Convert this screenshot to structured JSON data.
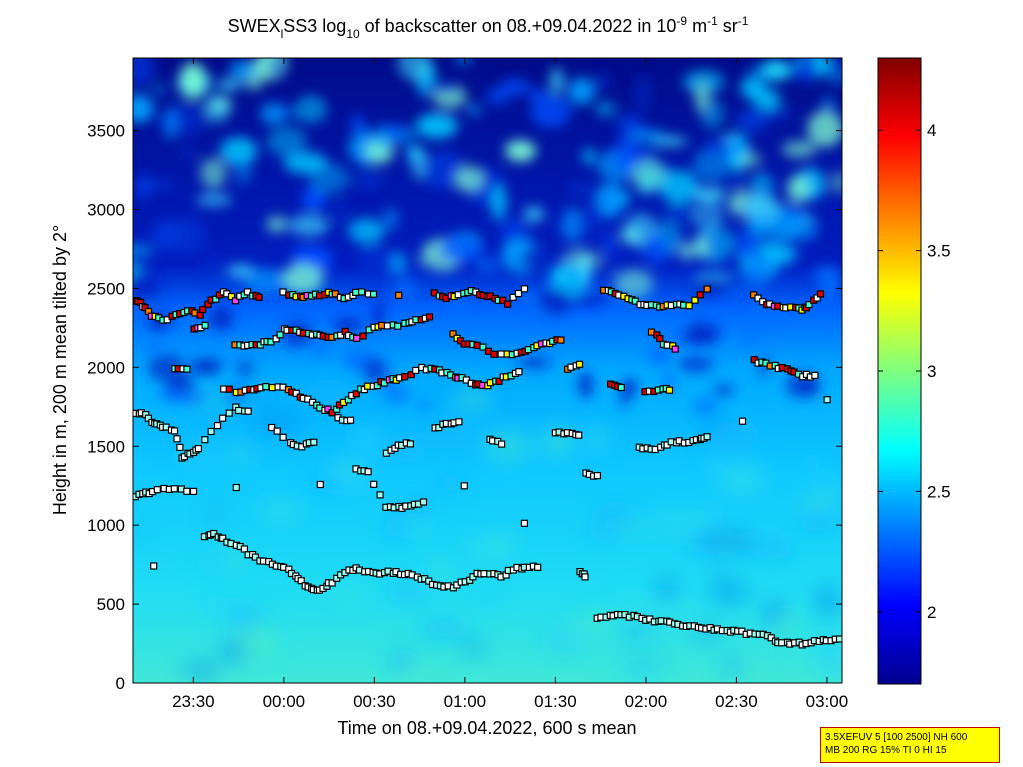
{
  "chart_data": {
    "type": "heatmap",
    "title": {
      "prefix": "SWEX",
      "sub_i": "l",
      "mid": "SS3 log",
      "sub_10": "10",
      "rest": " of backscatter on 08.+09.04.2022 in 10",
      "sup1": "-9",
      "unit_m": " m",
      "sup2": "-1",
      "unit_sr": " sr",
      "sup3": "-1"
    },
    "xlabel": "Time on 08.+09.04.2022, 600 s mean",
    "ylabel": "Height in m, 200 m mean tilted by 2°",
    "x_ticks": [
      "23:30",
      "00:00",
      "00:30",
      "01:00",
      "01:30",
      "02:00",
      "02:30",
      "03:00"
    ],
    "x_tick_minutes": [
      1410,
      1440,
      1470,
      1500,
      1530,
      1560,
      1590,
      1620
    ],
    "xlim_minutes": [
      1390,
      1625
    ],
    "y_ticks": [
      "0",
      "500",
      "1000",
      "1500",
      "2000",
      "2500",
      "3000",
      "3500"
    ],
    "y_tick_values": [
      0,
      500,
      1000,
      1500,
      2000,
      2500,
      3000,
      3500
    ],
    "ylim": [
      0,
      3960
    ],
    "colorbar": {
      "ticks": [
        "2",
        "2.5",
        "3",
        "3.5",
        "4"
      ],
      "tick_values": [
        2,
        2.5,
        3,
        3.5,
        4
      ],
      "range": [
        1.7,
        4.3
      ],
      "colormap": "jet"
    },
    "layers": [
      {
        "name": "upper",
        "points": [
          [
            1391,
            2430
          ],
          [
            1393,
            2390
          ],
          [
            1396,
            2330
          ],
          [
            1400,
            2300
          ],
          [
            1404,
            2330
          ],
          [
            1408,
            2360
          ],
          [
            1412,
            2330
          ],
          [
            1416,
            2420
          ],
          [
            1420,
            2470
          ],
          [
            1424,
            2430
          ],
          [
            1428,
            2470
          ],
          [
            1432,
            2440
          ],
          [
            1440,
            2480
          ],
          [
            1444,
            2440
          ],
          [
            1448,
            2450
          ],
          [
            1452,
            2460
          ],
          [
            1456,
            2470
          ],
          [
            1460,
            2430
          ],
          [
            1464,
            2480
          ],
          [
            1470,
            2470
          ],
          [
            1478,
            2460
          ],
          [
            1490,
            2470
          ],
          [
            1494,
            2440
          ],
          [
            1498,
            2460
          ],
          [
            1502,
            2480
          ],
          [
            1506,
            2450
          ],
          [
            1510,
            2440
          ],
          [
            1514,
            2410
          ],
          [
            1520,
            2500
          ],
          [
            1546,
            2490
          ],
          [
            1550,
            2460
          ],
          [
            1554,
            2440
          ],
          [
            1558,
            2400
          ],
          [
            1562,
            2390
          ],
          [
            1566,
            2380
          ],
          [
            1570,
            2400
          ],
          [
            1574,
            2390
          ],
          [
            1580,
            2500
          ],
          [
            1596,
            2450
          ],
          [
            1600,
            2400
          ],
          [
            1604,
            2390
          ],
          [
            1608,
            2380
          ],
          [
            1612,
            2360
          ],
          [
            1614,
            2400
          ],
          [
            1618,
            2460
          ]
        ]
      },
      {
        "name": "upper2",
        "points": [
          [
            1410,
            2250
          ],
          [
            1414,
            2260
          ],
          [
            1424,
            2150
          ],
          [
            1428,
            2140
          ],
          [
            1432,
            2150
          ],
          [
            1436,
            2160
          ],
          [
            1440,
            2240
          ],
          [
            1444,
            2230
          ],
          [
            1448,
            2220
          ],
          [
            1452,
            2200
          ],
          [
            1456,
            2190
          ],
          [
            1460,
            2220
          ],
          [
            1464,
            2180
          ],
          [
            1470,
            2260
          ],
          [
            1474,
            2270
          ],
          [
            1480,
            2270
          ],
          [
            1484,
            2300
          ],
          [
            1488,
            2310
          ],
          [
            1496,
            2210
          ],
          [
            1500,
            2150
          ],
          [
            1504,
            2140
          ],
          [
            1510,
            2090
          ],
          [
            1516,
            2080
          ],
          [
            1520,
            2100
          ],
          [
            1524,
            2140
          ],
          [
            1528,
            2160
          ],
          [
            1532,
            2170
          ],
          [
            1562,
            2230
          ],
          [
            1566,
            2150
          ],
          [
            1570,
            2120
          ]
        ]
      },
      {
        "name": "middle",
        "points": [
          [
            1404,
            1990
          ],
          [
            1408,
            1980
          ],
          [
            1420,
            1870
          ],
          [
            1426,
            1840
          ],
          [
            1430,
            1860
          ],
          [
            1434,
            1880
          ],
          [
            1440,
            1880
          ],
          [
            1444,
            1830
          ],
          [
            1448,
            1790
          ],
          [
            1452,
            1740
          ],
          [
            1456,
            1720
          ],
          [
            1460,
            1780
          ],
          [
            1464,
            1840
          ],
          [
            1468,
            1880
          ],
          [
            1472,
            1900
          ],
          [
            1476,
            1920
          ],
          [
            1480,
            1940
          ],
          [
            1486,
            1990
          ],
          [
            1490,
            1990
          ],
          [
            1494,
            1960
          ],
          [
            1498,
            1940
          ],
          [
            1502,
            1900
          ],
          [
            1506,
            1880
          ],
          [
            1510,
            1910
          ],
          [
            1514,
            1940
          ],
          [
            1518,
            1970
          ],
          [
            1534,
            1990
          ],
          [
            1538,
            2020
          ],
          [
            1548,
            1890
          ],
          [
            1552,
            1880
          ],
          [
            1560,
            1850
          ],
          [
            1564,
            1850
          ],
          [
            1568,
            1860
          ],
          [
            1596,
            2040
          ],
          [
            1600,
            2020
          ],
          [
            1604,
            2000
          ],
          [
            1608,
            1980
          ],
          [
            1612,
            1950
          ],
          [
            1616,
            1940
          ]
        ]
      },
      {
        "name": "lower",
        "points": [
          [
            1391,
            1710
          ],
          [
            1394,
            1700
          ],
          [
            1397,
            1640
          ],
          [
            1400,
            1620
          ],
          [
            1404,
            1600
          ],
          [
            1406,
            1430
          ],
          [
            1409,
            1460
          ],
          [
            1412,
            1490
          ],
          [
            1418,
            1640
          ],
          [
            1424,
            1740
          ],
          [
            1428,
            1720
          ],
          [
            1436,
            1620
          ],
          [
            1442,
            1520
          ],
          [
            1446,
            1500
          ],
          [
            1450,
            1520
          ],
          [
            1458,
            1680
          ],
          [
            1462,
            1660
          ],
          [
            1474,
            1460
          ],
          [
            1478,
            1500
          ],
          [
            1482,
            1520
          ],
          [
            1490,
            1620
          ],
          [
            1494,
            1640
          ],
          [
            1498,
            1650
          ],
          [
            1508,
            1540
          ],
          [
            1512,
            1520
          ],
          [
            1530,
            1590
          ],
          [
            1534,
            1580
          ],
          [
            1538,
            1570
          ],
          [
            1558,
            1490
          ],
          [
            1562,
            1480
          ],
          [
            1566,
            1500
          ],
          [
            1570,
            1530
          ],
          [
            1574,
            1520
          ],
          [
            1578,
            1550
          ],
          [
            1580,
            1560
          ],
          [
            1592,
            1650
          ],
          [
            1620,
            1800
          ]
        ]
      },
      {
        "name": "mid-low",
        "points": [
          [
            1391,
            1180
          ],
          [
            1394,
            1200
          ],
          [
            1398,
            1220
          ],
          [
            1404,
            1230
          ],
          [
            1410,
            1220
          ],
          [
            1424,
            1240
          ],
          [
            1452,
            1250
          ],
          [
            1464,
            1360
          ],
          [
            1468,
            1330
          ],
          [
            1474,
            1120
          ],
          [
            1478,
            1110
          ],
          [
            1482,
            1120
          ],
          [
            1486,
            1140
          ],
          [
            1500,
            1240
          ],
          [
            1520,
            1020
          ],
          [
            1540,
            1330
          ],
          [
            1544,
            1310
          ]
        ]
      },
      {
        "name": "boundary",
        "points": [
          [
            1397,
            740
          ],
          [
            1414,
            920
          ],
          [
            1417,
            940
          ],
          [
            1420,
            910
          ],
          [
            1424,
            880
          ],
          [
            1428,
            820
          ],
          [
            1432,
            780
          ],
          [
            1436,
            760
          ],
          [
            1440,
            730
          ],
          [
            1444,
            680
          ],
          [
            1447,
            620
          ],
          [
            1450,
            590
          ],
          [
            1453,
            600
          ],
          [
            1456,
            640
          ],
          [
            1460,
            700
          ],
          [
            1464,
            720
          ],
          [
            1468,
            710
          ],
          [
            1472,
            700
          ],
          [
            1476,
            700
          ],
          [
            1480,
            690
          ],
          [
            1484,
            680
          ],
          [
            1488,
            640
          ],
          [
            1492,
            620
          ],
          [
            1496,
            610
          ],
          [
            1500,
            640
          ],
          [
            1504,
            690
          ],
          [
            1508,
            700
          ],
          [
            1512,
            670
          ],
          [
            1516,
            720
          ],
          [
            1520,
            730
          ],
          [
            1524,
            740
          ],
          [
            1538,
            700
          ],
          [
            1540,
            680
          ]
        ]
      },
      {
        "name": "surface",
        "points": [
          [
            1544,
            420
          ],
          [
            1548,
            420
          ],
          [
            1552,
            430
          ],
          [
            1556,
            420
          ],
          [
            1560,
            400
          ],
          [
            1564,
            390
          ],
          [
            1568,
            380
          ],
          [
            1572,
            370
          ],
          [
            1576,
            360
          ],
          [
            1580,
            350
          ],
          [
            1584,
            340
          ],
          [
            1588,
            330
          ],
          [
            1592,
            320
          ],
          [
            1596,
            310
          ],
          [
            1600,
            300
          ],
          [
            1604,
            260
          ],
          [
            1608,
            250
          ],
          [
            1612,
            250
          ],
          [
            1616,
            260
          ],
          [
            1620,
            270
          ],
          [
            1624,
            280
          ]
        ]
      }
    ]
  },
  "info_box": {
    "line1": "3.5XEFUV 5 [100 2500] NH 600",
    "line2": "MB 200 RG 15% TI 0 HI 15"
  }
}
